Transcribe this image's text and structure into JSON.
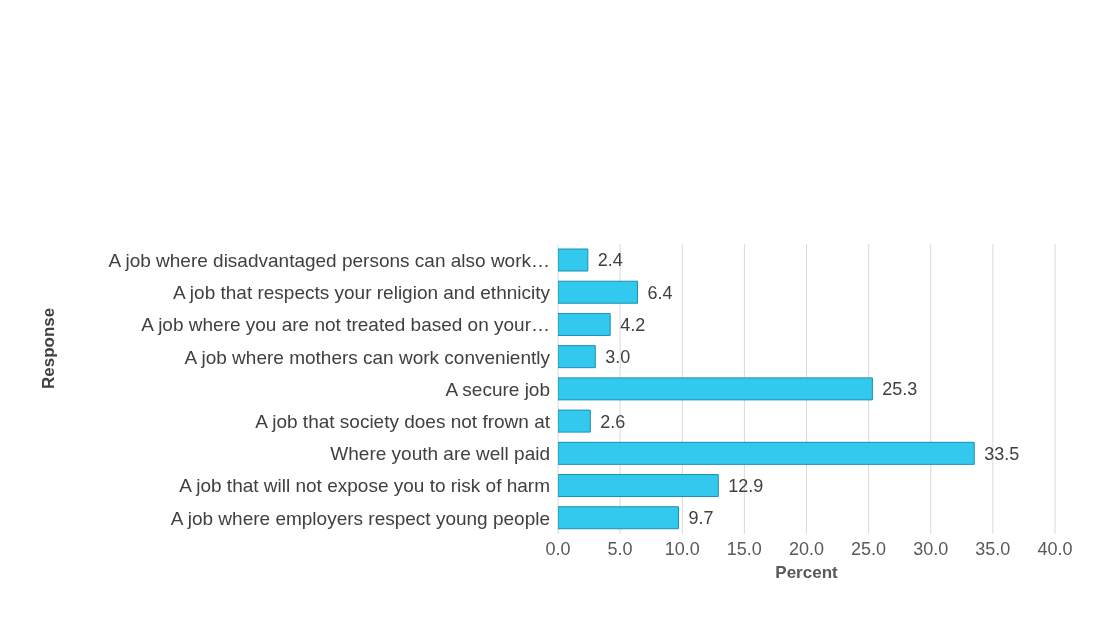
{
  "chart_data": {
    "type": "bar",
    "orientation": "horizontal",
    "xlabel": "Percent",
    "ylabel": "Response",
    "categories": [
      "A job where disadvantaged persons can also work…",
      "A job that respects your religion and ethnicity",
      "A job where you are not treated based on your…",
      "A job where mothers can work conveniently",
      "A secure job",
      "A job that society does not frown at",
      "Where youth are well paid",
      "A job that will not expose you to risk of harm",
      "A job where employers respect young people"
    ],
    "values": [
      2.4,
      6.4,
      4.2,
      3.0,
      25.3,
      2.6,
      33.5,
      12.9,
      9.7
    ],
    "value_labels": [
      "2.4",
      "6.4",
      "4.2",
      "3.0",
      "25.3",
      "2.6",
      "33.5",
      "12.9",
      "9.7"
    ],
    "color": "#33c9ee",
    "xlim": [
      0,
      40
    ],
    "xticks": [
      {
        "value": 0,
        "label": "0.0"
      },
      {
        "value": 5,
        "label": "5.0"
      },
      {
        "value": 10,
        "label": "10.0"
      },
      {
        "value": 15,
        "label": "15.0"
      },
      {
        "value": 20,
        "label": "20.0"
      },
      {
        "value": 25,
        "label": "25.0"
      },
      {
        "value": 30,
        "label": "30.0"
      },
      {
        "value": 35,
        "label": "35.0"
      },
      {
        "value": 40,
        "label": "40.0"
      }
    ],
    "grid": "x"
  }
}
